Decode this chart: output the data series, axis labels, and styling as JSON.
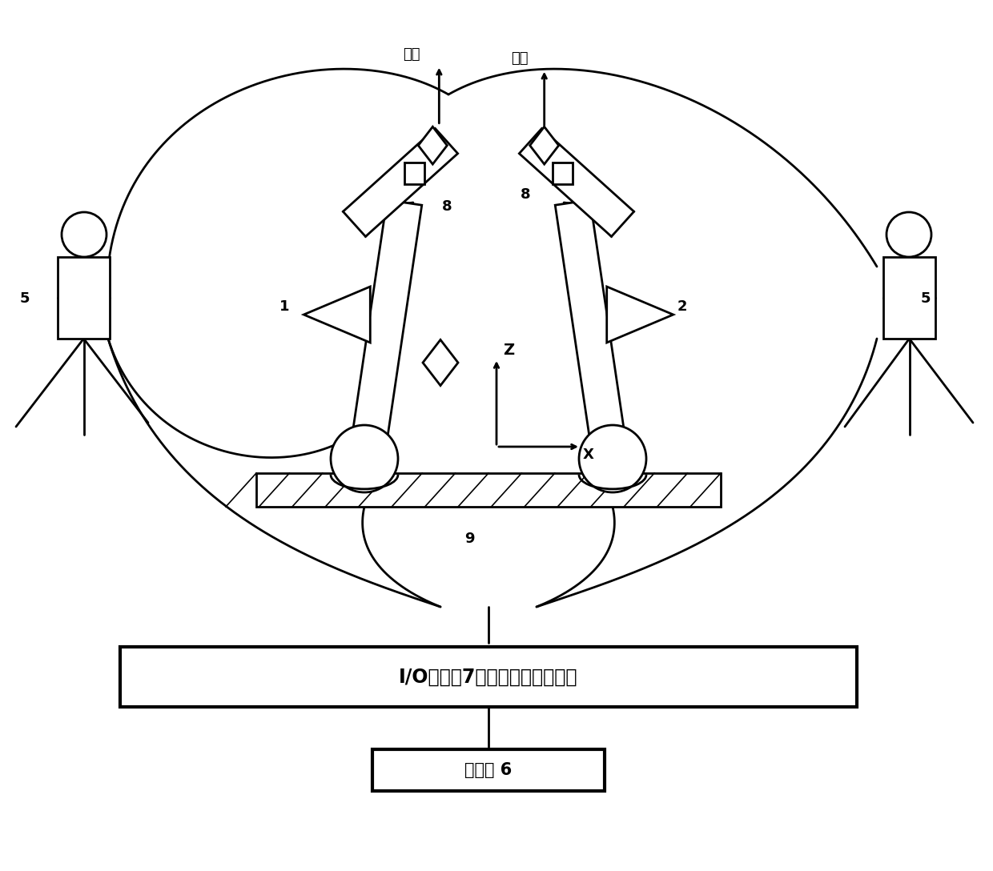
{
  "bg_color": "#ffffff",
  "line_color": "#000000",
  "line_width": 2.0,
  "label_qiu": "靶球",
  "label_z": "Z",
  "label_x": "X",
  "label_io": "I/O控制器7，用来保证同步控制",
  "label_host": "上位机 6",
  "figsize": [
    12.4,
    10.88
  ]
}
